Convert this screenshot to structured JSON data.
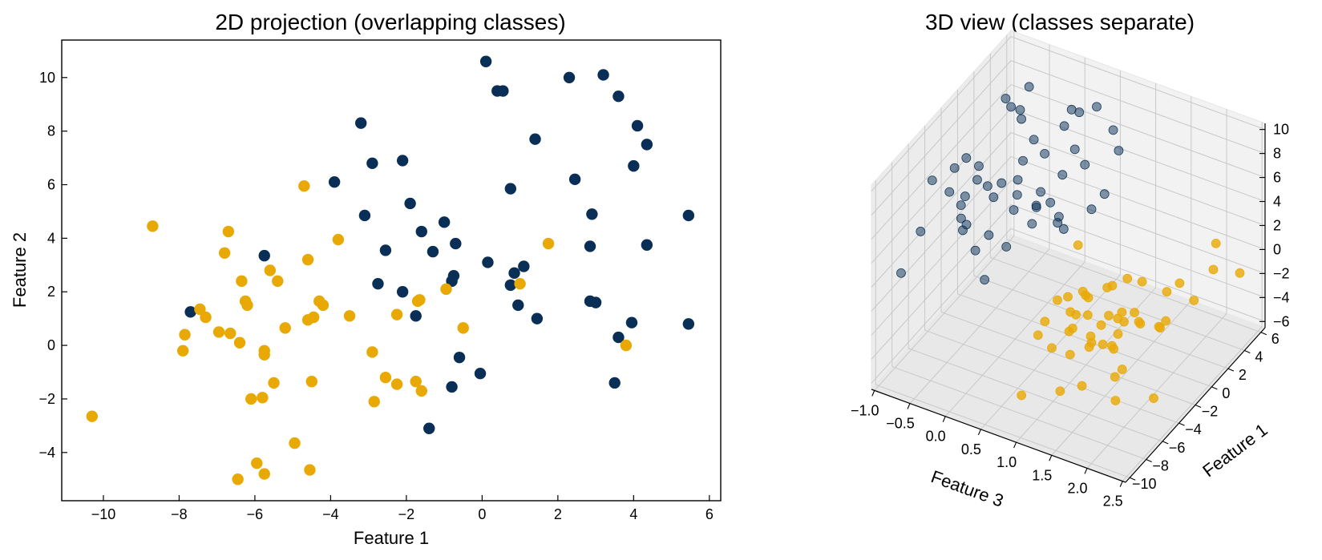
{
  "colors": {
    "class_a": "#0a2f56",
    "class_b": "#e9a904",
    "axis": "#000000",
    "grid": "#c8c8c8",
    "pane": "#f2f2f2"
  },
  "chart_data": [
    {
      "type": "scatter",
      "title": "2D projection (overlapping classes)",
      "xlabel": "Feature 1",
      "ylabel": "Feature 2",
      "xlim": [
        -11.1,
        6.3
      ],
      "ylim": [
        -5.8,
        11.4
      ],
      "xticks": [
        -10,
        -8,
        -6,
        -4,
        -2,
        0,
        2,
        4,
        6
      ],
      "yticks": [
        -4,
        -2,
        0,
        2,
        4,
        6,
        8,
        10
      ],
      "grid": false,
      "series": [
        {
          "color": "#0a2f56",
          "points": [
            [
              0.1,
              10.6
            ],
            [
              0.4,
              9.5
            ],
            [
              0.55,
              9.5
            ],
            [
              2.3,
              10.0
            ],
            [
              3.2,
              10.1
            ],
            [
              3.6,
              9.3
            ],
            [
              -3.2,
              8.3
            ],
            [
              4.1,
              8.2
            ],
            [
              1.4,
              7.7
            ],
            [
              4.35,
              7.5
            ],
            [
              -2.9,
              6.8
            ],
            [
              -2.1,
              6.9
            ],
            [
              4.0,
              6.7
            ],
            [
              -3.9,
              6.1
            ],
            [
              2.45,
              6.2
            ],
            [
              0.75,
              5.85
            ],
            [
              -1.9,
              5.3
            ],
            [
              -3.1,
              4.85
            ],
            [
              2.9,
              4.9
            ],
            [
              5.45,
              4.85
            ],
            [
              -1.0,
              4.6
            ],
            [
              -1.6,
              4.25
            ],
            [
              -2.55,
              3.55
            ],
            [
              -1.3,
              3.5
            ],
            [
              -0.7,
              3.8
            ],
            [
              2.85,
              3.7
            ],
            [
              4.35,
              3.75
            ],
            [
              -5.75,
              3.35
            ],
            [
              0.15,
              3.1
            ],
            [
              1.1,
              2.95
            ],
            [
              0.85,
              2.7
            ],
            [
              -0.75,
              2.6
            ],
            [
              -0.8,
              2.4
            ],
            [
              -2.75,
              2.3
            ],
            [
              0.75,
              2.25
            ],
            [
              -2.1,
              2.0
            ],
            [
              2.85,
              1.65
            ],
            [
              3.0,
              1.6
            ],
            [
              0.95,
              1.5
            ],
            [
              -7.7,
              1.25
            ],
            [
              -1.75,
              1.1
            ],
            [
              1.45,
              1.0
            ],
            [
              3.95,
              0.85
            ],
            [
              5.45,
              0.8
            ],
            [
              3.6,
              0.3
            ],
            [
              -0.6,
              -0.45
            ],
            [
              -0.05,
              -1.05
            ],
            [
              -0.8,
              -1.55
            ],
            [
              3.5,
              -1.4
            ],
            [
              -1.4,
              -3.1
            ]
          ]
        },
        {
          "color": "#e9a904",
          "points": [
            [
              -4.7,
              5.95
            ],
            [
              -8.7,
              4.45
            ],
            [
              -6.7,
              4.25
            ],
            [
              -3.8,
              3.95
            ],
            [
              -6.8,
              3.45
            ],
            [
              1.75,
              3.8
            ],
            [
              -4.6,
              3.2
            ],
            [
              -5.6,
              2.8
            ],
            [
              -5.4,
              2.4
            ],
            [
              -6.35,
              2.4
            ],
            [
              -0.95,
              2.1
            ],
            [
              1.0,
              2.3
            ],
            [
              -6.25,
              1.65
            ],
            [
              -6.2,
              1.5
            ],
            [
              -4.3,
              1.65
            ],
            [
              -4.2,
              1.5
            ],
            [
              -1.65,
              1.7
            ],
            [
              -1.7,
              1.65
            ],
            [
              -7.45,
              1.35
            ],
            [
              -7.3,
              1.05
            ],
            [
              -3.5,
              1.1
            ],
            [
              -2.25,
              1.15
            ],
            [
              -4.6,
              0.95
            ],
            [
              -4.45,
              1.05
            ],
            [
              -5.2,
              0.65
            ],
            [
              -0.5,
              0.65
            ],
            [
              -6.95,
              0.5
            ],
            [
              -6.65,
              0.45
            ],
            [
              -7.85,
              0.4
            ],
            [
              -6.4,
              0.1
            ],
            [
              3.8,
              0.0
            ],
            [
              -7.9,
              -0.2
            ],
            [
              -5.75,
              -0.2
            ],
            [
              -5.75,
              -0.35
            ],
            [
              -2.9,
              -0.25
            ],
            [
              -2.55,
              -1.2
            ],
            [
              -2.25,
              -1.45
            ],
            [
              -1.75,
              -1.35
            ],
            [
              -1.6,
              -1.7
            ],
            [
              -4.5,
              -1.35
            ],
            [
              -5.5,
              -1.4
            ],
            [
              -6.1,
              -2.0
            ],
            [
              -5.8,
              -1.95
            ],
            [
              -2.85,
              -2.1
            ],
            [
              -10.3,
              -2.65
            ],
            [
              -4.95,
              -3.65
            ],
            [
              -5.95,
              -4.4
            ],
            [
              -4.55,
              -4.65
            ],
            [
              -5.75,
              -4.8
            ],
            [
              -6.45,
              -5.0
            ]
          ]
        }
      ]
    },
    {
      "type": "scatter",
      "title": "3D view (classes separate)",
      "xlabel": "Feature 3",
      "ylabel": "Feature 1",
      "xticks": [
        "−1.0",
        "−0.5",
        "0.0",
        "0.5",
        "1.0",
        "1.5",
        "2.0",
        "2.5"
      ],
      "yticks": [
        "−10",
        "−8",
        "−6",
        "−4",
        "−2",
        "0",
        "2",
        "4",
        "6"
      ],
      "zticks": [
        "−6",
        "−4",
        "−2",
        "0",
        "2",
        "4",
        "6",
        "8",
        "10"
      ],
      "xlim": [
        -1.0,
        2.5
      ],
      "ylim": [
        -10,
        6
      ],
      "zlim": [
        -6,
        10
      ],
      "grid": true,
      "series": [
        {
          "color": "#0a2f56",
          "points_xyz": [
            [
              -0.85,
              4.2,
              7.0
            ],
            [
              -0.6,
              3.8,
              6.9
            ],
            [
              -0.3,
              0.1,
              10.6
            ],
            [
              -0.2,
              0.5,
              9.5
            ],
            [
              0.3,
              2.3,
              10.0
            ],
            [
              0.55,
              3.2,
              10.1
            ],
            [
              -0.45,
              3.6,
              9.3
            ],
            [
              -0.55,
              -3.2,
              8.3
            ],
            [
              0.2,
              4.1,
              8.2
            ],
            [
              0.45,
              1.4,
              7.7
            ],
            [
              0.65,
              4.35,
              7.5
            ],
            [
              -0.75,
              -2.9,
              6.8
            ],
            [
              -0.5,
              -2.1,
              6.9
            ],
            [
              0.0,
              4.0,
              6.7
            ],
            [
              -0.95,
              -3.9,
              6.1
            ],
            [
              -0.25,
              2.45,
              6.2
            ],
            [
              0.35,
              0.75,
              5.85
            ],
            [
              -0.4,
              -1.9,
              5.3
            ],
            [
              -0.8,
              -3.1,
              4.85
            ],
            [
              -0.15,
              2.9,
              4.9
            ],
            [
              0.6,
              5.45,
              4.85
            ],
            [
              -0.65,
              -1.0,
              4.6
            ],
            [
              -0.35,
              -1.6,
              4.25
            ],
            [
              -0.7,
              -2.55,
              3.55
            ],
            [
              -0.1,
              -1.3,
              3.5
            ],
            [
              0.15,
              -0.7,
              3.8
            ],
            [
              -0.45,
              2.85,
              3.7
            ],
            [
              0.25,
              4.35,
              3.75
            ],
            [
              -0.9,
              -5.75,
              3.35
            ],
            [
              0.05,
              0.15,
              3.1
            ],
            [
              -0.55,
              1.1,
              2.95
            ],
            [
              -0.3,
              0.85,
              2.7
            ],
            [
              -0.85,
              -0.75,
              2.6
            ],
            [
              0.1,
              -0.8,
              2.4
            ],
            [
              -0.6,
              -2.75,
              2.3
            ],
            [
              0.3,
              0.75,
              2.25
            ],
            [
              -0.75,
              -2.1,
              2.0
            ],
            [
              -0.2,
              2.85,
              1.65
            ],
            [
              0.5,
              3.0,
              1.6
            ],
            [
              -0.95,
              -7.7,
              1.25
            ],
            [
              -0.4,
              -1.75,
              1.1
            ],
            [
              0.2,
              1.45,
              1.0
            ],
            [
              -0.65,
              3.95,
              0.85
            ],
            [
              0.4,
              5.45,
              0.8
            ],
            [
              -0.15,
              3.6,
              0.3
            ],
            [
              -0.9,
              -0.6,
              -0.45
            ],
            [
              -0.35,
              -0.05,
              -1.05
            ],
            [
              -0.7,
              -0.8,
              -1.55
            ],
            [
              0.05,
              3.5,
              -1.4
            ],
            [
              -0.5,
              -1.4,
              -3.1
            ]
          ]
        },
        {
          "color": "#e9a904",
          "points_xyz": [
            [
              1.2,
              -4.7,
              5.95
            ],
            [
              1.8,
              -8.7,
              4.45
            ],
            [
              1.5,
              -6.7,
              4.25
            ],
            [
              2.0,
              -3.8,
              3.95
            ],
            [
              1.3,
              -6.8,
              3.45
            ],
            [
              2.4,
              1.75,
              3.8
            ],
            [
              1.6,
              -4.6,
              3.2
            ],
            [
              1.45,
              -5.6,
              2.8
            ],
            [
              1.9,
              -5.4,
              2.4
            ],
            [
              1.1,
              -6.35,
              2.4
            ],
            [
              2.2,
              -0.95,
              2.1
            ],
            [
              2.45,
              1.0,
              2.3
            ],
            [
              1.35,
              -6.25,
              1.65
            ],
            [
              1.7,
              -6.2,
              1.5
            ],
            [
              1.95,
              -4.3,
              1.65
            ],
            [
              1.25,
              -4.2,
              1.5
            ],
            [
              2.1,
              -1.65,
              1.7
            ],
            [
              1.55,
              -1.7,
              1.65
            ],
            [
              1.05,
              -7.45,
              1.35
            ],
            [
              1.85,
              -7.3,
              1.05
            ],
            [
              2.3,
              -3.5,
              1.1
            ],
            [
              1.4,
              -2.25,
              1.15
            ],
            [
              1.75,
              -4.6,
              0.95
            ],
            [
              2.05,
              -4.45,
              1.05
            ],
            [
              1.15,
              -5.2,
              0.65
            ],
            [
              2.35,
              -0.5,
              0.65
            ],
            [
              1.65,
              -6.95,
              0.5
            ],
            [
              1.3,
              -6.65,
              0.45
            ],
            [
              1.0,
              -7.85,
              0.4
            ],
            [
              1.9,
              -6.4,
              0.1
            ],
            [
              2.5,
              3.8,
              0.0
            ],
            [
              1.2,
              -7.9,
              -0.2
            ],
            [
              1.5,
              -5.75,
              -0.2
            ],
            [
              1.8,
              -5.75,
              -0.35
            ],
            [
              2.15,
              -2.9,
              -0.25
            ],
            [
              1.6,
              -2.55,
              -1.2
            ],
            [
              1.35,
              -2.25,
              -1.45
            ],
            [
              2.0,
              -1.75,
              -1.35
            ],
            [
              1.7,
              -1.6,
              -1.7
            ],
            [
              1.1,
              -4.5,
              -1.35
            ],
            [
              1.45,
              -5.5,
              -1.4
            ],
            [
              1.25,
              -6.1,
              -2.0
            ],
            [
              1.95,
              -5.8,
              -1.95
            ],
            [
              1.55,
              -2.85,
              -2.1
            ],
            [
              1.05,
              -10.3,
              -2.65
            ],
            [
              1.75,
              -4.95,
              -3.65
            ],
            [
              1.4,
              -5.95,
              -4.4
            ],
            [
              2.25,
              -4.55,
              -4.65
            ],
            [
              1.85,
              -5.75,
              -4.8
            ],
            [
              1.15,
              -6.45,
              -5.0
            ]
          ]
        }
      ]
    }
  ]
}
